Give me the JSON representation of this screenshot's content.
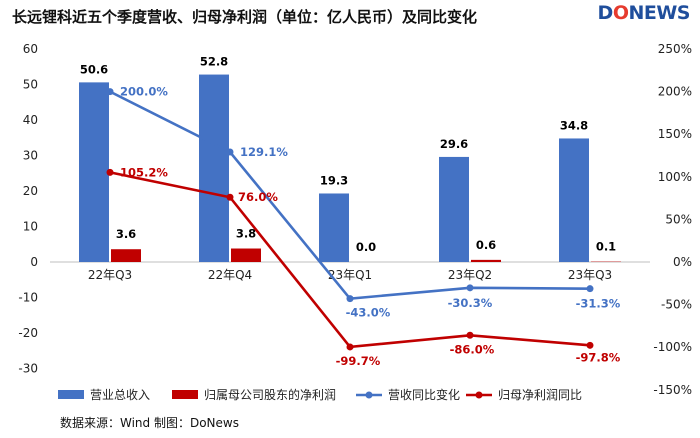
{
  "title": "长远锂科近五个季度营收、归母净利润（单位：亿人民币）及同比变化",
  "logo": {
    "prefix": "D",
    "o": "O",
    "suffix": "NEWS"
  },
  "source": "数据来源：Wind  制图：DoNews",
  "colors": {
    "revenue": "#4472c4",
    "profit": "#c00000",
    "revenue_yoy": "#4472c4",
    "profit_yoy": "#c00000"
  },
  "chart_data": {
    "type": "bar",
    "categories": [
      "22年Q3",
      "22年Q4",
      "23年Q1",
      "23年Q2",
      "23年Q3"
    ],
    "series": [
      {
        "name": "营业总收入",
        "kind": "bar",
        "axis": "left",
        "values": [
          50.6,
          52.8,
          19.3,
          29.6,
          34.8
        ],
        "labels": [
          "50.6",
          "52.8",
          "19.3",
          "29.6",
          "34.8"
        ]
      },
      {
        "name": "归属母公司股东的净利润",
        "kind": "bar",
        "axis": "left",
        "values": [
          3.6,
          3.8,
          0.0,
          0.6,
          0.1
        ],
        "labels": [
          "3.6",
          "3.8",
          "0.0",
          "0.6",
          "0.1"
        ]
      },
      {
        "name": "营收同比变化",
        "kind": "line",
        "axis": "right",
        "values": [
          200.0,
          129.1,
          -43.0,
          -30.3,
          -31.3
        ],
        "labels": [
          "200.0%",
          "129.1%",
          "-43.0%",
          "-30.3%",
          "-31.3%"
        ]
      },
      {
        "name": "归母净利润同比",
        "kind": "line",
        "axis": "right",
        "values": [
          105.2,
          76.0,
          -99.7,
          -86.0,
          -97.8
        ],
        "labels": [
          "105.2%",
          "76.0%",
          "-99.7%",
          "-86.0%",
          "-97.8%"
        ]
      }
    ],
    "y_left": {
      "min": -30,
      "max": 60,
      "ticks": [
        "60",
        "50",
        "40",
        "30",
        "20",
        "10",
        "0",
        "-10",
        "-20",
        "-30"
      ]
    },
    "y_right": {
      "min": -150,
      "max": 250,
      "ticks": [
        "250%",
        "200%",
        "150%",
        "100%",
        "50%",
        "0%",
        "-50%",
        "-100%",
        "-150%"
      ]
    },
    "legend": [
      "营业总收入",
      "归属母公司股东的净利润",
      "营收同比变化",
      "归母净利润同比"
    ],
    "grid": false
  }
}
